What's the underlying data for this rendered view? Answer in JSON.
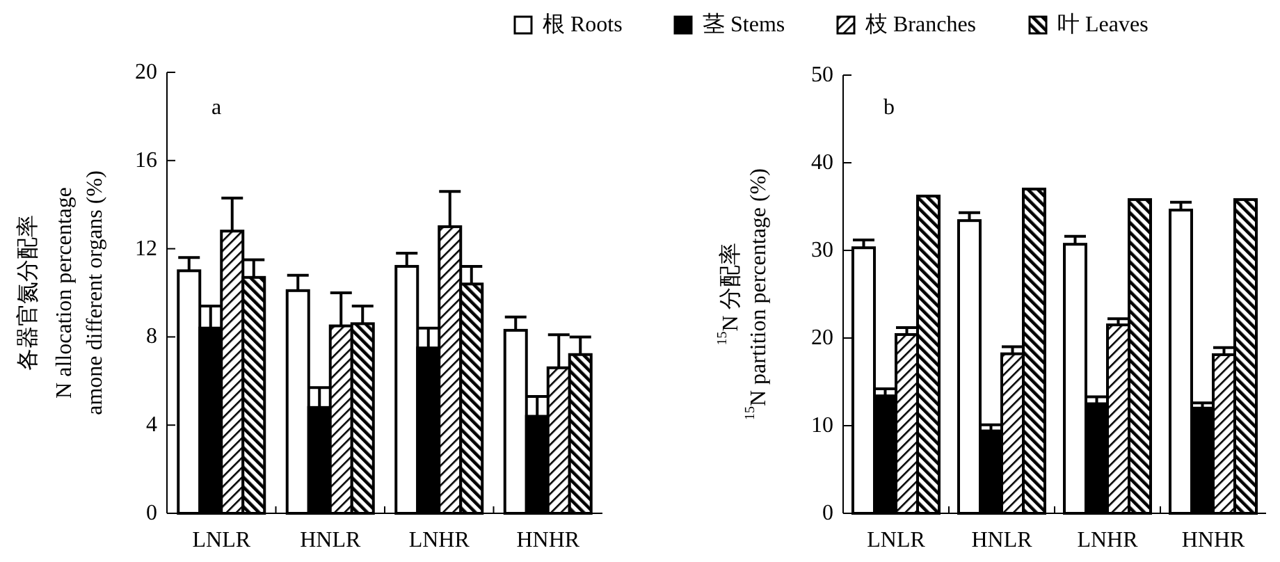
{
  "chart_data": [
    {
      "type": "bar",
      "categories": [
        "LNLR",
        "HNLR",
        "LNHR",
        "HNHR"
      ],
      "ylabel": "各器官氮分配率\nN allocation percentage\namone different organs (%)",
      "ylim": [
        0,
        20
      ],
      "yticks": [
        0,
        4,
        8,
        12,
        16,
        20
      ],
      "annotations": [
        "a"
      ],
      "legend": "top right",
      "grid": false,
      "series": [
        {
          "name": "根 Roots",
          "color": "#ffffff",
          "values": [
            11.0,
            10.1,
            11.2,
            8.3
          ],
          "errors": [
            [
              11.0,
              11.6
            ],
            [
              10.1,
              10.8
            ],
            [
              11.2,
              11.8
            ],
            [
              8.3,
              8.9
            ]
          ]
        },
        {
          "name": "茎 Stems",
          "color": "#000000",
          "values": [
            8.4,
            4.8,
            7.5,
            4.4
          ],
          "errors": [
            [
              8.4,
              9.4
            ],
            [
              4.8,
              5.7
            ],
            [
              7.5,
              8.4
            ],
            [
              4.4,
              5.3
            ]
          ]
        },
        {
          "name": "枝 Branches",
          "color": "#000000",
          "values": [
            12.8,
            8.5,
            13.0,
            6.6
          ],
          "errors": [
            [
              12.8,
              14.3
            ],
            [
              8.5,
              10.0
            ],
            [
              13.0,
              14.6
            ],
            [
              6.6,
              8.1
            ]
          ]
        },
        {
          "name": "叶 Leaves",
          "color": "#000000",
          "values": [
            10.7,
            8.6,
            10.4,
            7.2
          ],
          "errors": [
            [
              10.7,
              11.5
            ],
            [
              8.6,
              9.4
            ],
            [
              10.4,
              11.2
            ],
            [
              7.2,
              8.0
            ]
          ]
        }
      ]
    },
    {
      "type": "bar",
      "categories": [
        "LNLR",
        "HNLR",
        "LNHR",
        "HNHR"
      ],
      "ylabel": "$^{15}$N 分配率\n$^{15}$N partition percentage (%)",
      "ylim": [
        0,
        50
      ],
      "yticks": [
        0,
        10,
        20,
        30,
        40,
        50
      ],
      "annotations": [
        "b"
      ],
      "grid": false,
      "series": [
        {
          "color": "#ffffff",
          "values": [
            30.3,
            33.4,
            30.7,
            34.6
          ],
          "errors": [
            [
              30.3,
              31.2
            ],
            [
              33.4,
              34.3
            ],
            [
              30.7,
              31.6
            ],
            [
              34.6,
              35.5
            ]
          ]
        },
        {
          "color": "#000000",
          "values": [
            13.4,
            9.4,
            12.5,
            12.0
          ],
          "errors": [
            [
              13.4,
              14.2
            ],
            [
              9.4,
              10.1
            ],
            [
              12.5,
              13.3
            ],
            [
              12.0,
              12.6
            ]
          ]
        },
        {
          "color": "#000000",
          "values": [
            20.4,
            18.2,
            21.5,
            18.1
          ],
          "errors": [
            [
              20.4,
              21.2
            ],
            [
              18.2,
              19.0
            ],
            [
              21.5,
              22.2
            ],
            [
              18.1,
              18.9
            ]
          ]
        },
        {
          "color": "#000000",
          "values": [
            36.2,
            37.0,
            35.8,
            35.8
          ]
        }
      ]
    }
  ]
}
